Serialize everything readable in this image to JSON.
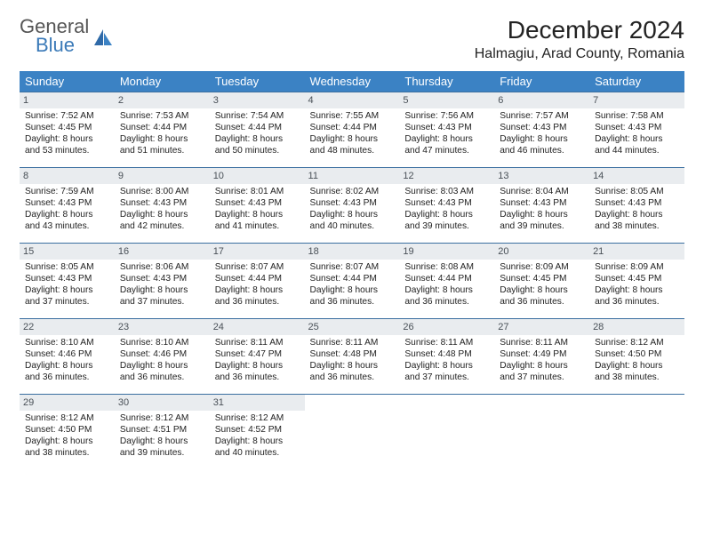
{
  "brand": {
    "general": "General",
    "blue": "Blue"
  },
  "title": "December 2024",
  "location": "Halmagiu, Arad County, Romania",
  "colors": {
    "header_bg": "#3b82c4",
    "header_text": "#ffffff",
    "daynum_bg": "#e9ecef",
    "row_border": "#3b6fa0",
    "brand_blue": "#3b7ab8"
  },
  "day_names": [
    "Sunday",
    "Monday",
    "Tuesday",
    "Wednesday",
    "Thursday",
    "Friday",
    "Saturday"
  ],
  "weeks": [
    [
      {
        "n": "1",
        "sr": "Sunrise: 7:52 AM",
        "ss": "Sunset: 4:45 PM",
        "dl1": "Daylight: 8 hours",
        "dl2": "and 53 minutes."
      },
      {
        "n": "2",
        "sr": "Sunrise: 7:53 AM",
        "ss": "Sunset: 4:44 PM",
        "dl1": "Daylight: 8 hours",
        "dl2": "and 51 minutes."
      },
      {
        "n": "3",
        "sr": "Sunrise: 7:54 AM",
        "ss": "Sunset: 4:44 PM",
        "dl1": "Daylight: 8 hours",
        "dl2": "and 50 minutes."
      },
      {
        "n": "4",
        "sr": "Sunrise: 7:55 AM",
        "ss": "Sunset: 4:44 PM",
        "dl1": "Daylight: 8 hours",
        "dl2": "and 48 minutes."
      },
      {
        "n": "5",
        "sr": "Sunrise: 7:56 AM",
        "ss": "Sunset: 4:43 PM",
        "dl1": "Daylight: 8 hours",
        "dl2": "and 47 minutes."
      },
      {
        "n": "6",
        "sr": "Sunrise: 7:57 AM",
        "ss": "Sunset: 4:43 PM",
        "dl1": "Daylight: 8 hours",
        "dl2": "and 46 minutes."
      },
      {
        "n": "7",
        "sr": "Sunrise: 7:58 AM",
        "ss": "Sunset: 4:43 PM",
        "dl1": "Daylight: 8 hours",
        "dl2": "and 44 minutes."
      }
    ],
    [
      {
        "n": "8",
        "sr": "Sunrise: 7:59 AM",
        "ss": "Sunset: 4:43 PM",
        "dl1": "Daylight: 8 hours",
        "dl2": "and 43 minutes."
      },
      {
        "n": "9",
        "sr": "Sunrise: 8:00 AM",
        "ss": "Sunset: 4:43 PM",
        "dl1": "Daylight: 8 hours",
        "dl2": "and 42 minutes."
      },
      {
        "n": "10",
        "sr": "Sunrise: 8:01 AM",
        "ss": "Sunset: 4:43 PM",
        "dl1": "Daylight: 8 hours",
        "dl2": "and 41 minutes."
      },
      {
        "n": "11",
        "sr": "Sunrise: 8:02 AM",
        "ss": "Sunset: 4:43 PM",
        "dl1": "Daylight: 8 hours",
        "dl2": "and 40 minutes."
      },
      {
        "n": "12",
        "sr": "Sunrise: 8:03 AM",
        "ss": "Sunset: 4:43 PM",
        "dl1": "Daylight: 8 hours",
        "dl2": "and 39 minutes."
      },
      {
        "n": "13",
        "sr": "Sunrise: 8:04 AM",
        "ss": "Sunset: 4:43 PM",
        "dl1": "Daylight: 8 hours",
        "dl2": "and 39 minutes."
      },
      {
        "n": "14",
        "sr": "Sunrise: 8:05 AM",
        "ss": "Sunset: 4:43 PM",
        "dl1": "Daylight: 8 hours",
        "dl2": "and 38 minutes."
      }
    ],
    [
      {
        "n": "15",
        "sr": "Sunrise: 8:05 AM",
        "ss": "Sunset: 4:43 PM",
        "dl1": "Daylight: 8 hours",
        "dl2": "and 37 minutes."
      },
      {
        "n": "16",
        "sr": "Sunrise: 8:06 AM",
        "ss": "Sunset: 4:43 PM",
        "dl1": "Daylight: 8 hours",
        "dl2": "and 37 minutes."
      },
      {
        "n": "17",
        "sr": "Sunrise: 8:07 AM",
        "ss": "Sunset: 4:44 PM",
        "dl1": "Daylight: 8 hours",
        "dl2": "and 36 minutes."
      },
      {
        "n": "18",
        "sr": "Sunrise: 8:07 AM",
        "ss": "Sunset: 4:44 PM",
        "dl1": "Daylight: 8 hours",
        "dl2": "and 36 minutes."
      },
      {
        "n": "19",
        "sr": "Sunrise: 8:08 AM",
        "ss": "Sunset: 4:44 PM",
        "dl1": "Daylight: 8 hours",
        "dl2": "and 36 minutes."
      },
      {
        "n": "20",
        "sr": "Sunrise: 8:09 AM",
        "ss": "Sunset: 4:45 PM",
        "dl1": "Daylight: 8 hours",
        "dl2": "and 36 minutes."
      },
      {
        "n": "21",
        "sr": "Sunrise: 8:09 AM",
        "ss": "Sunset: 4:45 PM",
        "dl1": "Daylight: 8 hours",
        "dl2": "and 36 minutes."
      }
    ],
    [
      {
        "n": "22",
        "sr": "Sunrise: 8:10 AM",
        "ss": "Sunset: 4:46 PM",
        "dl1": "Daylight: 8 hours",
        "dl2": "and 36 minutes."
      },
      {
        "n": "23",
        "sr": "Sunrise: 8:10 AM",
        "ss": "Sunset: 4:46 PM",
        "dl1": "Daylight: 8 hours",
        "dl2": "and 36 minutes."
      },
      {
        "n": "24",
        "sr": "Sunrise: 8:11 AM",
        "ss": "Sunset: 4:47 PM",
        "dl1": "Daylight: 8 hours",
        "dl2": "and 36 minutes."
      },
      {
        "n": "25",
        "sr": "Sunrise: 8:11 AM",
        "ss": "Sunset: 4:48 PM",
        "dl1": "Daylight: 8 hours",
        "dl2": "and 36 minutes."
      },
      {
        "n": "26",
        "sr": "Sunrise: 8:11 AM",
        "ss": "Sunset: 4:48 PM",
        "dl1": "Daylight: 8 hours",
        "dl2": "and 37 minutes."
      },
      {
        "n": "27",
        "sr": "Sunrise: 8:11 AM",
        "ss": "Sunset: 4:49 PM",
        "dl1": "Daylight: 8 hours",
        "dl2": "and 37 minutes."
      },
      {
        "n": "28",
        "sr": "Sunrise: 8:12 AM",
        "ss": "Sunset: 4:50 PM",
        "dl1": "Daylight: 8 hours",
        "dl2": "and 38 minutes."
      }
    ],
    [
      {
        "n": "29",
        "sr": "Sunrise: 8:12 AM",
        "ss": "Sunset: 4:50 PM",
        "dl1": "Daylight: 8 hours",
        "dl2": "and 38 minutes."
      },
      {
        "n": "30",
        "sr": "Sunrise: 8:12 AM",
        "ss": "Sunset: 4:51 PM",
        "dl1": "Daylight: 8 hours",
        "dl2": "and 39 minutes."
      },
      {
        "n": "31",
        "sr": "Sunrise: 8:12 AM",
        "ss": "Sunset: 4:52 PM",
        "dl1": "Daylight: 8 hours",
        "dl2": "and 40 minutes."
      },
      {
        "empty": true
      },
      {
        "empty": true
      },
      {
        "empty": true
      },
      {
        "empty": true
      }
    ]
  ]
}
